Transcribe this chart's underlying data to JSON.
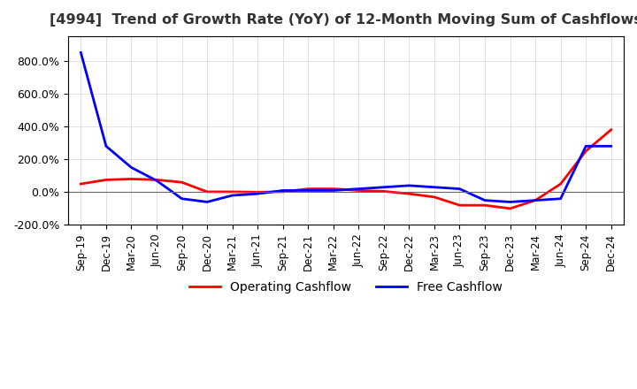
{
  "title": "[4994]  Trend of Growth Rate (YoY) of 12-Month Moving Sum of Cashflows",
  "legend": [
    "Operating Cashflow",
    "Free Cashflow"
  ],
  "legend_colors": [
    "#ff0000",
    "#0000ff"
  ],
  "background_color": "#ffffff",
  "grid_color": "#cccccc",
  "x_labels": [
    "Sep-19",
    "Dec-19",
    "Mar-20",
    "Jun-20",
    "Sep-20",
    "Dec-20",
    "Mar-21",
    "Jun-21",
    "Sep-21",
    "Dec-21",
    "Mar-22",
    "Jun-22",
    "Sep-22",
    "Dec-22",
    "Mar-23",
    "Jun-23",
    "Sep-23",
    "Dec-23",
    "Mar-24",
    "Jun-24",
    "Sep-24",
    "Dec-24"
  ],
  "operating_cashflow": [
    0.5,
    0.75,
    0.8,
    0.75,
    0.6,
    0.02,
    0.02,
    0.0,
    0.02,
    0.2,
    0.2,
    0.1,
    0.05,
    -0.1,
    -0.3,
    -0.8,
    -0.8,
    -1.0,
    -0.5,
    0.5,
    2.5,
    3.8
  ],
  "free_cashflow": [
    8.5,
    2.8,
    1.5,
    0.7,
    -0.4,
    -0.6,
    -0.2,
    -0.1,
    0.1,
    0.1,
    0.1,
    0.2,
    0.3,
    0.4,
    0.3,
    0.2,
    -0.5,
    -0.6,
    -0.5,
    -0.4,
    2.8,
    2.8
  ],
  "ylim": [
    -2.0,
    9.5
  ],
  "yticks": [
    -2.0,
    0.0,
    2.0,
    4.0,
    6.0,
    8.0
  ],
  "ytick_labels": [
    "-200.0%",
    "0.0%",
    "200.0%",
    "400.0%",
    "600.0%",
    "800.0%"
  ]
}
